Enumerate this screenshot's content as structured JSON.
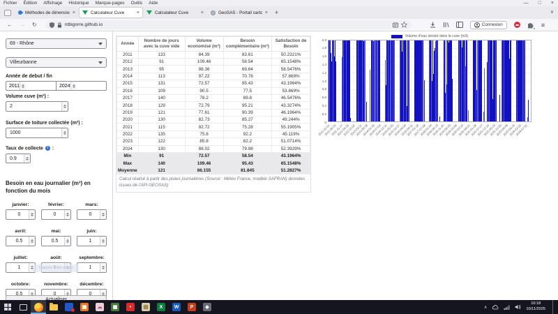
{
  "browser": {
    "menu_items": [
      "Fichier",
      "Édition",
      "Affichage",
      "Historique",
      "Marque-pages",
      "Outils",
      "Aide"
    ],
    "window_controls": {
      "minimize": "—",
      "maximize": "□",
      "close": "×"
    },
    "tabs": [
      {
        "title": "Méthodes de dimensionnemen",
        "icon": "drop-favicon",
        "active": false
      },
      {
        "title": "Calculateur Cuve",
        "icon": "leaf-favicon",
        "active": true
      },
      {
        "title": "Calculateur Cuve",
        "icon": "leaf-favicon",
        "active": false
      },
      {
        "title": "GeoSAS - Portail cartographiq",
        "icon": "globe-favicon",
        "active": false
      }
    ],
    "tab_close_glyph": "×",
    "new_tab_label": "+",
    "all_tabs_glyph": "∨",
    "nav": {
      "back": "←",
      "forward": "→",
      "reload": "↻"
    },
    "url": "ntbigorre.github.io",
    "account_label": "Connexion",
    "hamburger_glyph": "≡"
  },
  "sidebar": {
    "department_select": "69 - Rhône",
    "city_select": "Villeurbanne",
    "year_label": "Année de debut / fin",
    "year_start": "2011",
    "year_end": "2024",
    "volume_label": "Volume cuve (m³) :",
    "volume_value": "2",
    "surface_label": "Surface de toiture collectée (m²) :",
    "surface_value": "1000",
    "taux_label_before": "Taux de collecte ",
    "taux_info_glyph": "i",
    "taux_label_after": " :",
    "taux_value": "0.9",
    "besoin_heading": "Besoin en eau journalier (m³) en fonction du mois",
    "months": [
      {
        "label": "janvier:",
        "value": "0"
      },
      {
        "label": "février:",
        "value": "0"
      },
      {
        "label": "mars:",
        "value": "0"
      },
      {
        "label": "avril:",
        "value": "0.5"
      },
      {
        "label": "mai:",
        "value": "0.5"
      },
      {
        "label": "juin:",
        "value": "1"
      },
      {
        "label": "juillet:",
        "value": "1"
      },
      {
        "label": "août:",
        "value": "1"
      },
      {
        "label": "septembre:",
        "value": "1"
      },
      {
        "label": "octobre:",
        "value": "0.5"
      },
      {
        "label": "novembre:",
        "value": "0"
      },
      {
        "label": "décembre:",
        "value": "0"
      }
    ],
    "refresh_label": "Actualiser",
    "overlay_label": "Capture Plein écran"
  },
  "table": {
    "headers": [
      "Année",
      "Nombre de jours avec la cuve vide",
      "Volume economisé (m³)",
      "Besoin complémentaire (m³)",
      "Satisfaction de Besoin"
    ],
    "rows": [
      [
        "2011",
        "133",
        "84.39",
        "83.61",
        "50.2321%"
      ],
      [
        "2012",
        "91",
        "109.46",
        "58.54",
        "65.1548%"
      ],
      [
        "2013",
        "95",
        "98.36",
        "69.64",
        "58.5476%"
      ],
      [
        "2014",
        "113",
        "97.22",
        "70.78",
        "57.869%"
      ],
      [
        "2015",
        "131",
        "72.57",
        "95.43",
        "43.1964%"
      ],
      [
        "2016",
        "109",
        "90.5",
        "77.5",
        "53.869%"
      ],
      [
        "2017",
        "140",
        "78.2",
        "89.8",
        "46.5476%"
      ],
      [
        "2018",
        "129",
        "72.79",
        "95.21",
        "43.3274%"
      ],
      [
        "2019",
        "121",
        "77.61",
        "90.39",
        "46.1964%"
      ],
      [
        "2020",
        "130",
        "82.73",
        "85.27",
        "49.244%"
      ],
      [
        "2021",
        "115",
        "92.72",
        "75.28",
        "55.1905%"
      ],
      [
        "2022",
        "135",
        "75.8",
        "92.2",
        "45.119%"
      ],
      [
        "2023",
        "122",
        "85.8",
        "82.2",
        "51.0714%"
      ],
      [
        "2024",
        "130",
        "88.02",
        "79.98",
        "52.3929%"
      ]
    ],
    "summary": [
      [
        "Min",
        "91",
        "72.57",
        "58.54",
        "43.1964%"
      ],
      [
        "Max",
        "140",
        "109.46",
        "95.43",
        "65.1548%"
      ],
      [
        "Moyenne",
        "121",
        "86.155",
        "81.845",
        "51.2827%"
      ]
    ],
    "note": "Calcul réalisé à partir des pluies journalières (Source : Météo France, modèle SAFRAN) données issues de l'API GEOSAS)"
  },
  "chart_data": {
    "type": "bar",
    "legend": "Volume d'eau stocké dans la cuve (m3)",
    "ylabel": "",
    "xlabel": "",
    "ylim": [
      0,
      2
    ],
    "yticks": [
      "2,0",
      "1,8",
      "1,6",
      "1,4",
      "1,2",
      "1,0",
      "0,8",
      "0,6",
      "0,4",
      "0,2",
      "0"
    ],
    "xticks": [
      "2011-01-01",
      "2011-06-10",
      "2011-11-17",
      "2012-04-25",
      "2012-10-02",
      "2013-03-11",
      "2013-08-18",
      "2014-01-25",
      "2014-07-04",
      "2014-12-11",
      "2015-05-20",
      "2015-10-27",
      "2016-04-04",
      "2016-09-11",
      "2017-02-18",
      "2017-07-28",
      "2018-01-04",
      "2018-06-13",
      "2018-11-20",
      "2019-04-29",
      "2019-10-06",
      "2020-03-14",
      "2020-08-21",
      "2021-01-28",
      "2021-07-07",
      "2021-12-14",
      "2022-05-23",
      "2022-10-30",
      "2023-04-08",
      "2023-09-15",
      "2024-02-22",
      "2024-07-31"
    ],
    "series": [
      {
        "name": "Volume d'eau stocké dans la cuve (m3)",
        "description": "Daily stored water volume 2011-01-01 to 2024-12-31; tank full at 2.0 m3 most of the year with short dips, empty (0) during roughly 91-140 days per year (summer/autumn gaps), matching the table statistics."
      }
    ],
    "bar_color": "#1111bf",
    "bar_color_light": "#5555d8",
    "grid": true,
    "legend_position": "top-center",
    "generator": {
      "columns": 292,
      "seed": 77,
      "total_years": 14,
      "gap_start": 0.52,
      "gap_end": 0.88,
      "full_value": 2,
      "dip_probability": 0.2,
      "light_bar_probability": 0.28,
      "tick_interval_days": 160,
      "total_days": 5113
    }
  },
  "taskbar": {
    "icons": [
      {
        "name": "start-button",
        "type": "start"
      },
      {
        "name": "task-view-button",
        "type": "taskview"
      },
      {
        "name": "firefox-icon",
        "type": "firefox",
        "active": true
      },
      {
        "name": "file-explorer-icon",
        "type": "folder"
      },
      {
        "name": "blue-app-icon-with-notification",
        "type": "square",
        "bg": "#2458c8",
        "glyph": "",
        "badge": "#e02a2a"
      },
      {
        "name": "orange-grid-app-icon",
        "type": "square",
        "bg": "#e87722",
        "glyph": "▦"
      },
      {
        "name": "pink-cloud-app-icon",
        "type": "square",
        "bg": "#e8cfd8",
        "glyph": "☁",
        "fg": "#b05a7a"
      },
      {
        "name": "mosaic-app-icon",
        "type": "square",
        "bg": "#4a7a3a",
        "glyph": "▩"
      },
      {
        "name": "red-app-icon",
        "type": "square",
        "bg": "#d92b2b",
        "glyph": "•"
      },
      {
        "name": "map-app-icon",
        "type": "square",
        "bg": "#d8cba8",
        "glyph": "▤",
        "fg": "#7a6a3a"
      },
      {
        "name": "excel-icon",
        "type": "square",
        "bg": "#107c41",
        "glyph": "X"
      },
      {
        "name": "word-icon",
        "type": "square",
        "bg": "#185abd",
        "glyph": "W"
      },
      {
        "name": "powerpoint-icon",
        "type": "square",
        "bg": "#c43e1c",
        "glyph": "P"
      },
      {
        "name": "shield-app-icon",
        "type": "square",
        "bg": "#6a6a72",
        "glyph": "◈"
      }
    ],
    "tray_caret": "∧",
    "time": "10:18",
    "date": "10/11/2025"
  }
}
